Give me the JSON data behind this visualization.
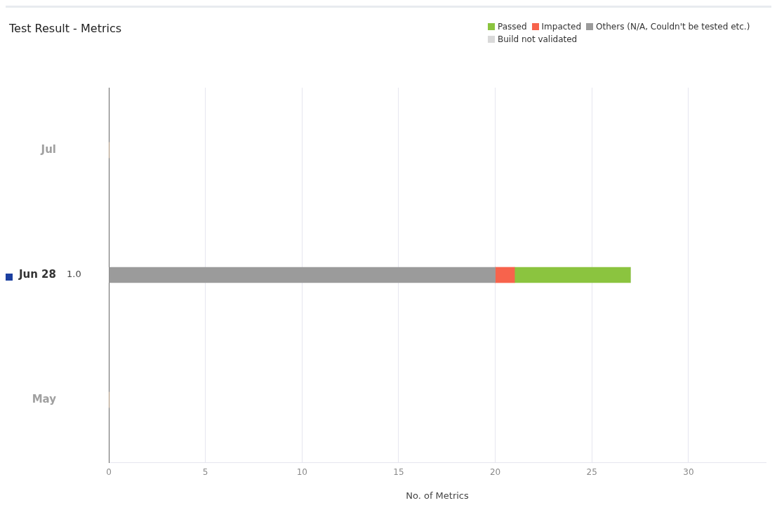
{
  "chart_data": {
    "type": "bar",
    "orientation": "horizontal",
    "stacked": true,
    "title": "Test Result - Metrics",
    "xlabel": "No. of Metrics",
    "categories": [
      "Jul",
      "Jun 28",
      "May"
    ],
    "series": [
      {
        "name": "Others (N/A, Couldn't be tested etc.)",
        "color": "#9b9b9b",
        "values": [
          0,
          20,
          0
        ]
      },
      {
        "name": "Impacted",
        "color": "#f7634c",
        "values": [
          0,
          1,
          0
        ]
      },
      {
        "name": "Passed",
        "color": "#8bc43f",
        "values": [
          0,
          6,
          0
        ]
      },
      {
        "name": "Build not validated",
        "color": "#d9d9d9",
        "values": [
          0,
          0,
          0
        ]
      }
    ],
    "xlim": [
      0,
      34
    ],
    "xticks": [
      0,
      5,
      10,
      15,
      20,
      25,
      30
    ],
    "grid": "x",
    "legend": "top right",
    "annotations": [
      "1.0"
    ]
  }
}
